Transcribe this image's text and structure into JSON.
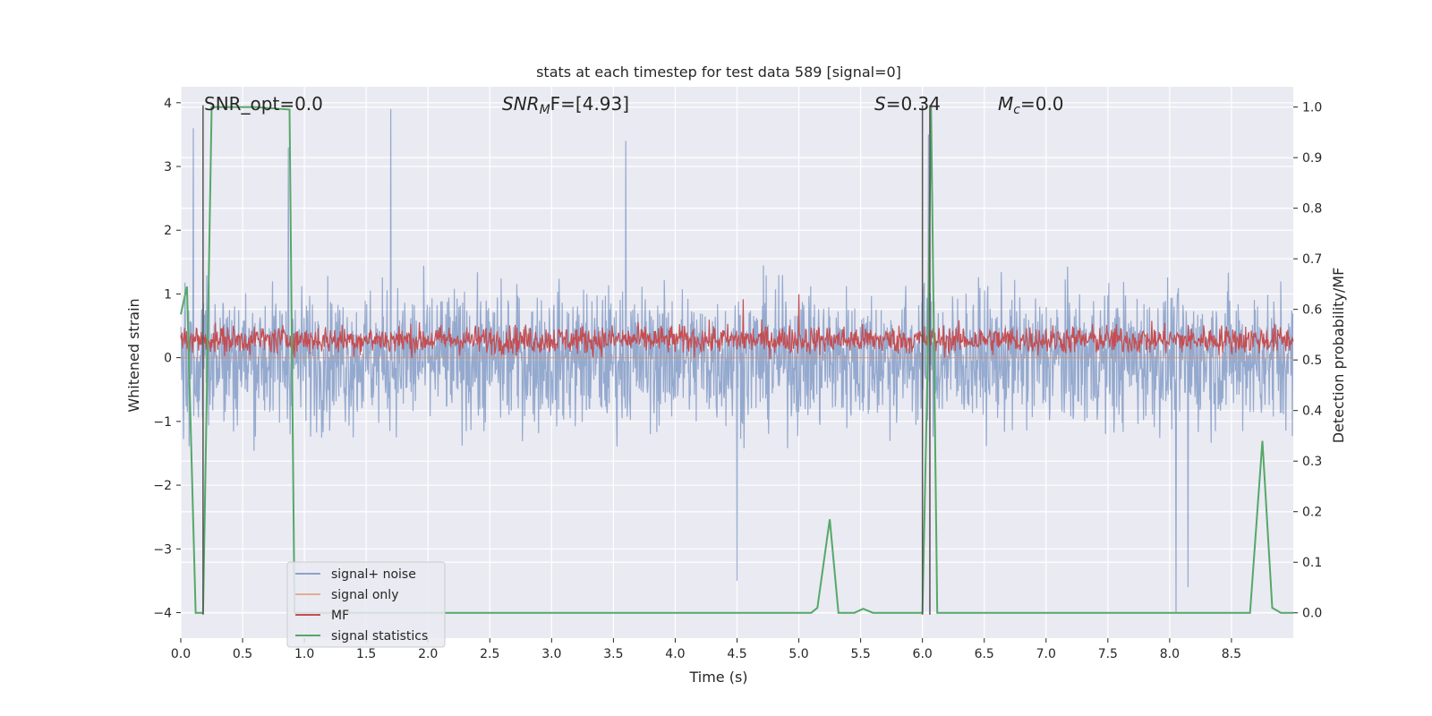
{
  "chart_data": {
    "type": "line",
    "title": "stats at each timestep for test data 589 [signal=0]",
    "xlabel": "Time (s)",
    "ylabel_left": "Whitened strain",
    "ylabel_right": "Detection probability/MF",
    "xlim": [
      0.0,
      9.0
    ],
    "ylim_left": [
      -4.4,
      4.25
    ],
    "ylim_right": [
      -0.05,
      1.04
    ],
    "x_ticks": [
      "0.0",
      "0.5",
      "1.0",
      "1.5",
      "2.0",
      "2.5",
      "3.0",
      "3.5",
      "4.0",
      "4.5",
      "5.0",
      "5.5",
      "6.0",
      "6.5",
      "7.0",
      "7.5",
      "8.0",
      "8.5"
    ],
    "y_ticks_left": [
      "−4",
      "−3",
      "−2",
      "−1",
      "0",
      "1",
      "2",
      "3",
      "4"
    ],
    "y_ticks_right": [
      "0.0",
      "0.1",
      "0.2",
      "0.3",
      "0.4",
      "0.5",
      "0.6",
      "0.7",
      "0.8",
      "0.9",
      "1.0"
    ],
    "grid": true,
    "legend_position": "lower-left",
    "annotations": {
      "snr_opt": "SNR_opt=0.0",
      "snr_mf_main": "SNR",
      "snr_mf_sub": "M",
      "snr_mf_rest": "F=[4.93]",
      "s_italic": "S",
      "s_rest": "=0.34",
      "mc_italic": "M",
      "mc_sub": "c",
      "mc_rest": "=0.0"
    },
    "vertical_markers": [
      0.18,
      6.0,
      6.06
    ],
    "series": [
      {
        "name": "signal+ noise",
        "color": "#4c72b0",
        "description_axis": "left",
        "noise_std": 0.75,
        "peaks": [
          [
            0.1,
            3.6
          ],
          [
            0.87,
            3.3
          ],
          [
            1.7,
            3.9
          ],
          [
            3.6,
            3.4
          ],
          [
            4.5,
            -3.5
          ],
          [
            6.05,
            3.5
          ],
          [
            8.05,
            -4.0
          ],
          [
            8.15,
            -3.6
          ]
        ]
      },
      {
        "name": "signal only",
        "color": "#dd8452",
        "description_axis": "left",
        "values": "zero"
      },
      {
        "name": "MF",
        "color": "#c44e52",
        "description_axis": "right",
        "mean": 0.54,
        "noise_std": 0.02,
        "peaks": [
          [
            4.55,
            0.62
          ],
          [
            5.0,
            0.63
          ]
        ]
      },
      {
        "name": "signal statistics",
        "color": "#55a868",
        "description_axis": "right",
        "x": [
          0.0,
          0.05,
          0.12,
          0.18,
          0.25,
          0.3,
          0.6,
          0.88,
          0.92,
          0.95,
          1.0,
          5.1,
          5.15,
          5.25,
          5.32,
          5.45,
          5.52,
          5.6,
          6.0,
          6.04,
          6.07,
          6.12,
          6.2,
          8.65,
          8.75,
          8.83,
          8.9,
          9.0
        ],
        "y": [
          0.59,
          0.645,
          0.0,
          0.0,
          1.0,
          1.0,
          1.0,
          0.995,
          0.0,
          0.0,
          0.0,
          0.0,
          0.01,
          0.185,
          0.0,
          0.0,
          0.008,
          0.0,
          0.0,
          0.47,
          1.0,
          0.0,
          0.0,
          0.0,
          0.34,
          0.01,
          0.0,
          0.0
        ]
      }
    ]
  }
}
